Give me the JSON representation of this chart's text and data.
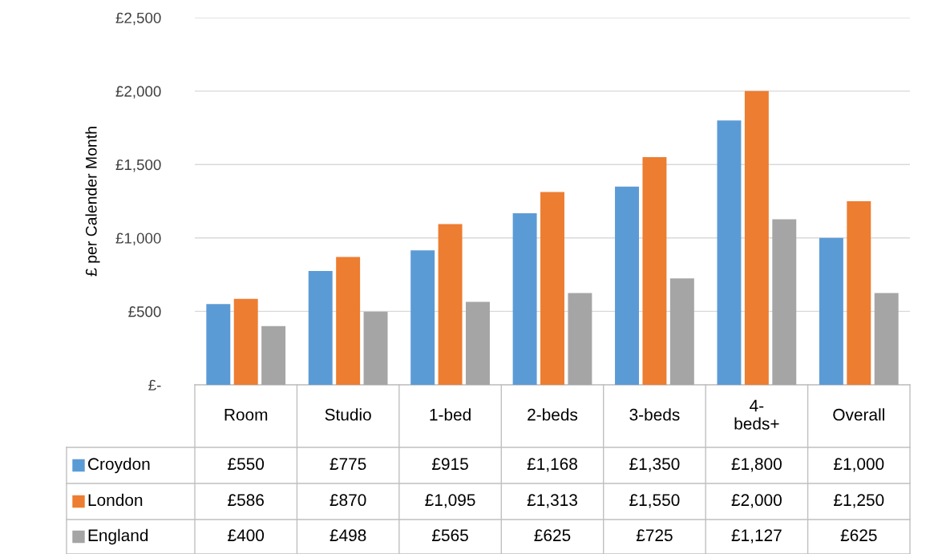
{
  "chart_data": {
    "type": "bar",
    "ylabel": "£ per Calender Month",
    "categories": [
      "Room",
      "Studio",
      "1-bed",
      "2-beds",
      "3-beds",
      "4-\nbeds+",
      "Overall"
    ],
    "series": [
      {
        "name": "Croydon",
        "color": "#5b9bd5",
        "values": [
          550,
          775,
          915,
          1168,
          1350,
          1800,
          1000
        ],
        "value_labels": [
          "£550",
          "£775",
          "£915",
          "£1,168",
          "£1,350",
          "£1,800",
          "£1,000"
        ]
      },
      {
        "name": "London",
        "color": "#ed7d31",
        "values": [
          586,
          870,
          1095,
          1313,
          1550,
          2000,
          1250
        ],
        "value_labels": [
          "£586",
          "£870",
          "£1,095",
          "£1,313",
          "£1,550",
          "£2,000",
          "£1,250"
        ]
      },
      {
        "name": "England",
        "color": "#a5a5a5",
        "values": [
          400,
          498,
          565,
          625,
          725,
          1127,
          625
        ],
        "value_labels": [
          "£400",
          "£498",
          "£565",
          "£625",
          "£725",
          "£1,127",
          "£625"
        ]
      }
    ],
    "ylim": [
      0,
      2500
    ],
    "yticks": [
      {
        "value": 0,
        "label": "£-"
      },
      {
        "value": 500,
        "label": "£500"
      },
      {
        "value": 1000,
        "label": "£1,000"
      },
      {
        "value": 1500,
        "label": "£1,500"
      },
      {
        "value": 2000,
        "label": "£2,000"
      },
      {
        "value": 2500,
        "label": "£2,500"
      }
    ],
    "grid": "y",
    "legend": "bottom",
    "data_labels": true
  }
}
